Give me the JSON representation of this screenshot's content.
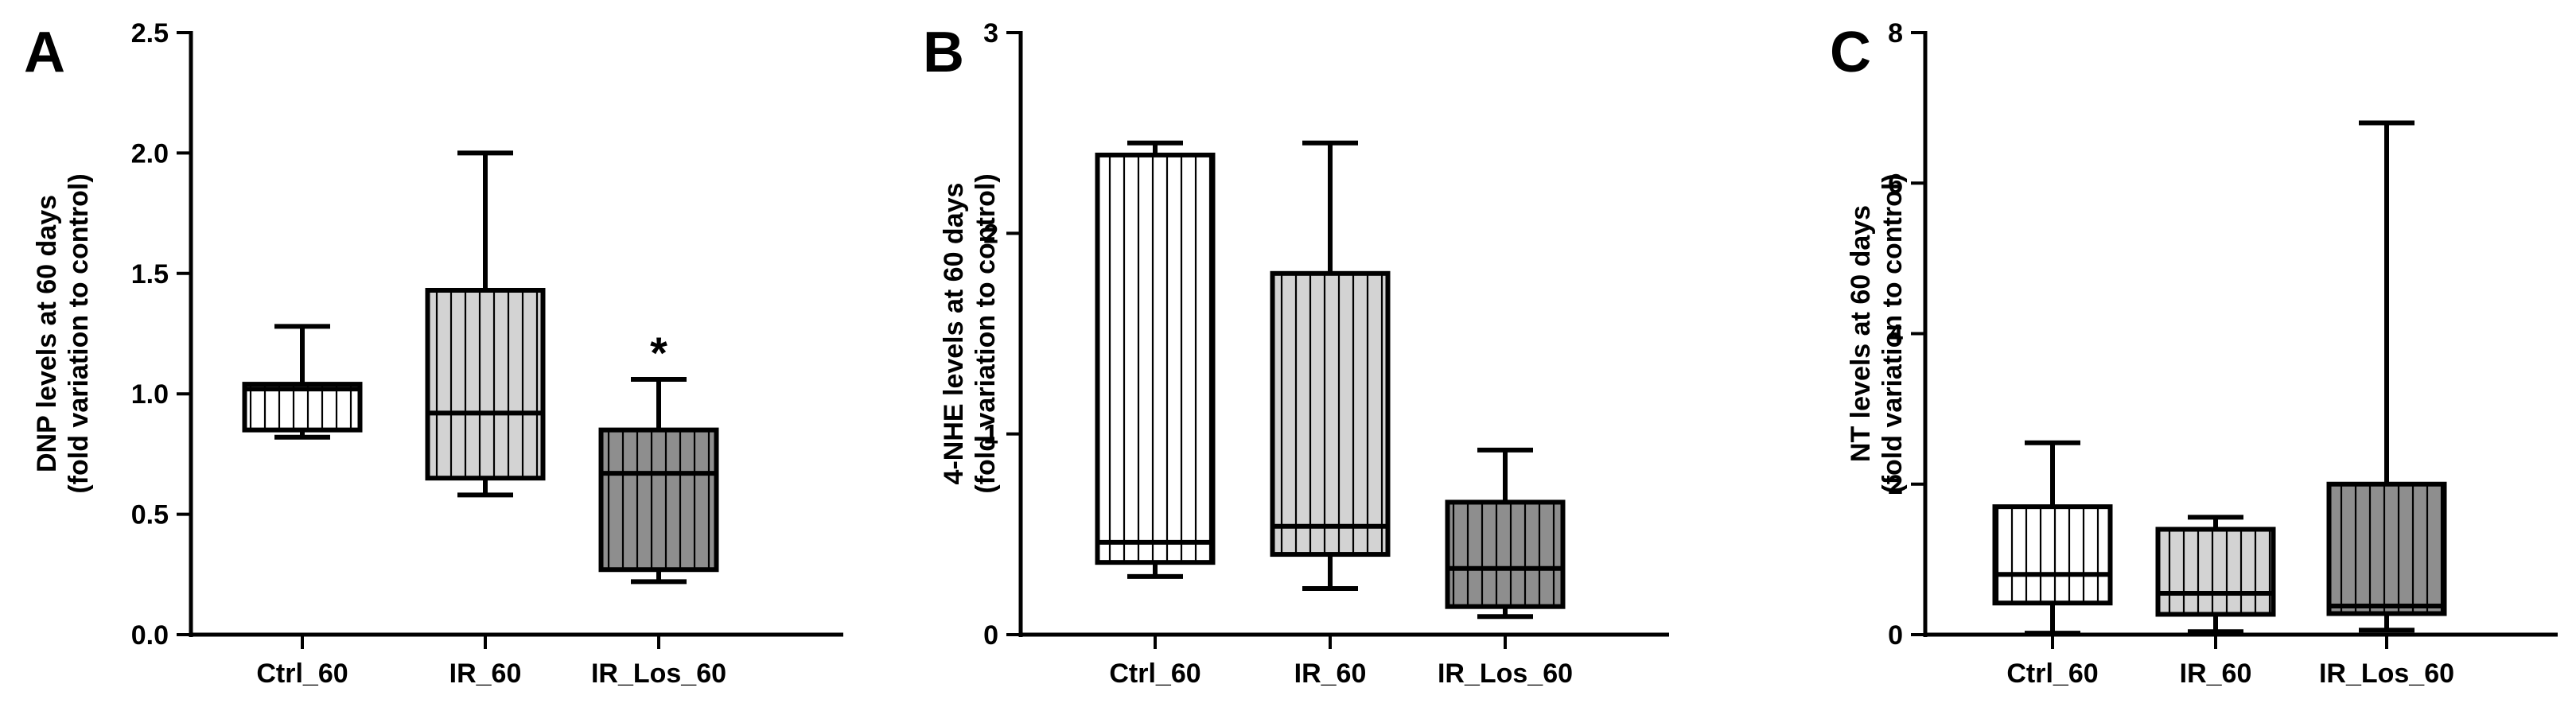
{
  "chart_data": [
    {
      "panel": "A",
      "type": "box",
      "ylabel_lines": [
        "DNP levels at 60 days",
        "(fold variation to control)"
      ],
      "ylim": [
        0,
        2.5
      ],
      "yticks": [
        0.0,
        0.5,
        1.0,
        1.5,
        2.0,
        2.5
      ],
      "ytick_labels": [
        "0.0",
        "0.5",
        "1.0",
        "1.5",
        "2.0",
        "2.5"
      ],
      "categories": [
        "Ctrl_60",
        "IR_60",
        "IR_Los_60"
      ],
      "boxes": [
        {
          "group": "Ctrl_60",
          "min": 0.82,
          "q1": 0.85,
          "median": 1.02,
          "q3": 1.04,
          "max": 1.28
        },
        {
          "group": "IR_60",
          "min": 0.58,
          "q1": 0.65,
          "median": 0.92,
          "q3": 1.43,
          "max": 2.0
        },
        {
          "group": "IR_Los_60",
          "min": 0.22,
          "q1": 0.27,
          "median": 0.67,
          "q3": 0.85,
          "max": 1.06
        }
      ],
      "annotations": [
        {
          "group": "IR_Los_60",
          "text": "*"
        }
      ]
    },
    {
      "panel": "B",
      "type": "box",
      "ylabel_lines": [
        "4-NHE levels at 60 days",
        "(fold variation to control)"
      ],
      "ylim": [
        0,
        3
      ],
      "yticks": [
        0,
        1,
        2,
        3
      ],
      "ytick_labels": [
        "0",
        "1",
        "2",
        "3"
      ],
      "categories": [
        "Ctrl_60",
        "IR_60",
        "IR_Los_60"
      ],
      "boxes": [
        {
          "group": "Ctrl_60",
          "min": 0.29,
          "q1": 0.36,
          "median": 0.46,
          "q3": 2.39,
          "max": 2.45
        },
        {
          "group": "IR_60",
          "min": 0.23,
          "q1": 0.4,
          "median": 0.54,
          "q3": 1.8,
          "max": 2.45
        },
        {
          "group": "IR_Los_60",
          "min": 0.09,
          "q1": 0.14,
          "median": 0.33,
          "q3": 0.66,
          "max": 0.92
        }
      ],
      "annotations": []
    },
    {
      "panel": "C",
      "type": "box",
      "ylabel_lines": [
        "NT levels at 60 days",
        "(fold variation to control)"
      ],
      "ylim": [
        0,
        8
      ],
      "yticks": [
        0,
        2,
        4,
        6,
        8
      ],
      "ytick_labels": [
        "0",
        "2",
        "4",
        "6",
        "8"
      ],
      "categories": [
        "Ctrl_60",
        "IR_60",
        "IR_Los_60"
      ],
      "boxes": [
        {
          "group": "Ctrl_60",
          "min": 0.02,
          "q1": 0.42,
          "median": 0.8,
          "q3": 1.7,
          "max": 2.55
        },
        {
          "group": "IR_60",
          "min": 0.04,
          "q1": 0.27,
          "median": 0.55,
          "q3": 1.4,
          "max": 1.56
        },
        {
          "group": "IR_Los_60",
          "min": 0.06,
          "q1": 0.28,
          "median": 0.38,
          "q3": 2.0,
          "max": 6.8
        }
      ],
      "annotations": []
    }
  ],
  "style": {
    "box_fills": [
      "#ffffff",
      "#d3d3d3",
      "#8e8e8e"
    ],
    "stripe_color": "#000000",
    "line_color": "#000000"
  }
}
